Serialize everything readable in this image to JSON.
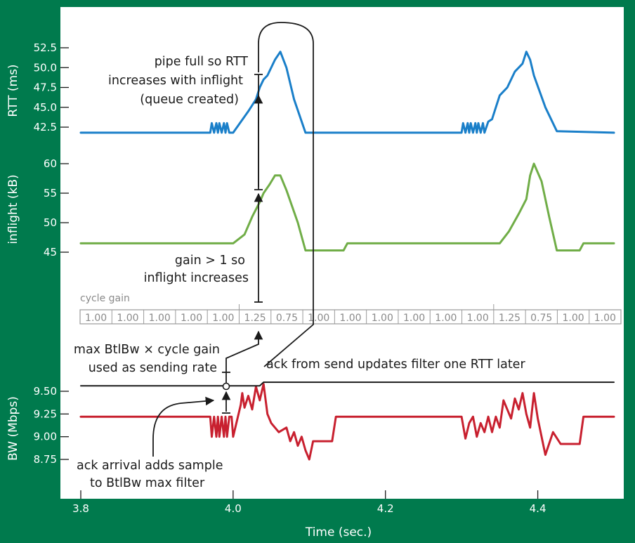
{
  "chart_data": {
    "type": "line",
    "xlabel": "Time (sec.)",
    "x_ticks": [
      "3.8",
      "4.0",
      "4.2",
      "4.4"
    ],
    "xlim": [
      3.8,
      4.5
    ],
    "panels": [
      {
        "id": "rtt",
        "ylabel": "RTT (ms)",
        "ylim": [
          42.5,
          52.5
        ],
        "y_ticks": [
          "52.5",
          "50.0",
          "47.5",
          "45.0",
          "42.5"
        ],
        "color": "#1a7fc9",
        "series": [
          {
            "name": "",
            "x": [
              3.8,
              3.97,
              3.972,
              3.975,
              3.978,
              3.98,
              3.982,
              3.985,
              3.988,
              3.99,
              3.992,
              3.995,
              3.998,
              4.0,
              4.02,
              4.03,
              4.035,
              4.04,
              4.045,
              4.055,
              4.062,
              4.07,
              4.08,
              4.095,
              4.1,
              4.3,
              4.302,
              4.305,
              4.308,
              4.31,
              4.312,
              4.315,
              4.318,
              4.32,
              4.322,
              4.325,
              4.328,
              4.33,
              4.335,
              4.34,
              4.345,
              4.35,
              4.36,
              4.37,
              4.38,
              4.385,
              4.39,
              4.395,
              4.41,
              4.425,
              4.5
            ],
            "y": [
              41.8,
              41.8,
              43.0,
              41.8,
              43.0,
              41.8,
              43.0,
              41.8,
              43.0,
              41.8,
              43.0,
              41.8,
              41.8,
              41.8,
              44.5,
              46.0,
              47.5,
              48.5,
              49.0,
              51.0,
              52.0,
              50.0,
              46.0,
              41.8,
              41.8,
              41.8,
              43.0,
              41.8,
              43.0,
              41.8,
              43.0,
              41.8,
              43.0,
              41.8,
              43.0,
              41.8,
              43.0,
              41.8,
              43.2,
              43.5,
              45.0,
              46.5,
              47.5,
              49.5,
              50.5,
              52.0,
              51.0,
              49.0,
              45.0,
              42.0,
              41.8
            ]
          }
        ]
      },
      {
        "id": "inflight",
        "ylabel": "inflight (kB)",
        "ylim": [
          45,
          60
        ],
        "y_ticks": [
          "60",
          "55",
          "50",
          "45"
        ],
        "color": "#70ad47",
        "series": [
          {
            "name": "",
            "x": [
              3.8,
              4.0,
              4.015,
              4.025,
              4.035,
              4.04,
              4.048,
              4.055,
              4.062,
              4.07,
              4.085,
              4.095,
              4.145,
              4.15,
              4.35,
              4.362,
              4.375,
              4.385,
              4.39,
              4.395,
              4.405,
              4.415,
              4.425,
              4.455,
              4.46,
              4.5
            ],
            "y": [
              46.5,
              46.5,
              48.0,
              51.0,
              53.5,
              55.0,
              56.5,
              58.0,
              58.0,
              55.5,
              50.0,
              45.3,
              45.3,
              46.5,
              46.5,
              48.5,
              51.5,
              54.0,
              58.0,
              60.0,
              57.0,
              51.0,
              45.3,
              45.3,
              46.5,
              46.5
            ]
          }
        ]
      },
      {
        "id": "bw",
        "ylabel": "BW (Mbps)",
        "ylim": [
          8.75,
          9.5
        ],
        "y_ticks": [
          "9.50",
          "9.25",
          "9.00",
          "8.75"
        ],
        "color": "#c8202f",
        "series": [
          {
            "name": "",
            "x": [
              3.8,
              3.97,
              3.972,
              3.975,
              3.978,
              3.98,
              3.982,
              3.985,
              3.988,
              3.99,
              3.992,
              3.995,
              3.998,
              4.0,
              4.01,
              4.012,
              4.015,
              4.02,
              4.025,
              4.03,
              4.035,
              4.04,
              4.045,
              4.05,
              4.06,
              4.07,
              4.075,
              4.08,
              4.085,
              4.09,
              4.095,
              4.1,
              4.105,
              4.11,
              4.115,
              4.12,
              4.13,
              4.135,
              4.3,
              4.305,
              4.31,
              4.315,
              4.32,
              4.325,
              4.33,
              4.335,
              4.34,
              4.345,
              4.35,
              4.355,
              4.36,
              4.365,
              4.37,
              4.375,
              4.38,
              4.385,
              4.39,
              4.395,
              4.4,
              4.405,
              4.41,
              4.42,
              4.43,
              4.455,
              4.46,
              4.5
            ],
            "y": [
              9.22,
              9.22,
              9.0,
              9.22,
              9.0,
              9.22,
              9.0,
              9.22,
              9.0,
              9.22,
              9.0,
              9.22,
              9.22,
              9.0,
              9.35,
              9.48,
              9.32,
              9.45,
              9.3,
              9.55,
              9.4,
              9.58,
              9.25,
              9.15,
              9.05,
              9.1,
              8.95,
              9.05,
              8.9,
              9.0,
              8.85,
              8.75,
              8.95,
              8.95,
              8.95,
              8.95,
              8.95,
              9.22,
              9.22,
              8.98,
              9.15,
              9.22,
              9.0,
              9.15,
              9.05,
              9.22,
              9.05,
              9.22,
              9.1,
              9.4,
              9.3,
              9.2,
              9.42,
              9.3,
              9.48,
              9.25,
              9.1,
              9.48,
              9.2,
              9.0,
              8.8,
              9.05,
              8.92,
              8.92,
              9.22,
              9.22
            ]
          },
          {
            "name": "",
            "x": [
              3.8,
              4.035,
              4.04,
              4.5
            ],
            "y": [
              9.56,
              9.56,
              9.6,
              9.6
            ]
          }
        ]
      }
    ],
    "cycle_gain_label": "cycle gain",
    "cycle_gain_values": [
      "1.00",
      "1.00",
      "1.00",
      "1.00",
      "1.00",
      "1.25",
      "0.75",
      "1.00",
      "1.00",
      "1.00",
      "1.00",
      "1.00",
      "1.00",
      "1.25",
      "0.75",
      "1.00",
      "1.00"
    ],
    "annotations": {
      "rtt": [
        "pipe full so RTT",
        "increases with inflight",
        "(queue created)"
      ],
      "inflight": [
        "gain > 1 so",
        "inflight increases"
      ],
      "sending_rate": [
        "max BtlBw × cycle gain",
        "used as sending rate"
      ],
      "ack_update": "ack from send updates filter one RTT later",
      "ack_arrival": [
        "ack arrival adds sample",
        "to BtlBw max filter"
      ]
    },
    "colors": {
      "background": "#007a4d",
      "panel": "#ffffff",
      "rtt": "#1a7fc9",
      "inflight": "#70ad47",
      "bw": "#c8202f"
    }
  }
}
